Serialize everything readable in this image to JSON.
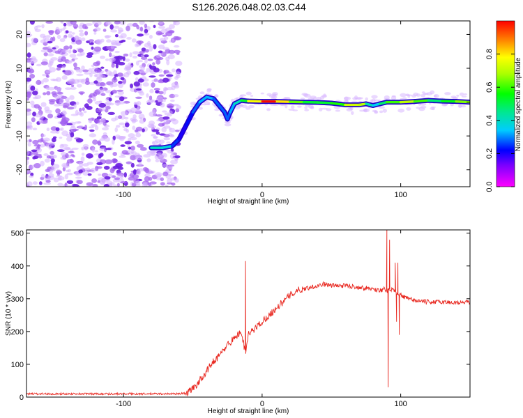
{
  "title": "S126.2026.048.02.03.C44",
  "chart_data": [
    {
      "type": "heatmap",
      "xlabel": "Height of straight line (km)",
      "ylabel": "Frequency (Hz)",
      "xlim": [
        -170,
        150
      ],
      "ylim": [
        -25,
        24
      ],
      "x_ticks": [
        -100,
        0,
        100
      ],
      "x_tick_labels": [
        "-100",
        "0",
        "100"
      ],
      "y_ticks": [
        -20,
        -10,
        0,
        10,
        20
      ],
      "y_tick_labels": [
        "-20",
        "-10",
        "0",
        "10",
        "20"
      ],
      "noise_region_x": [
        -170,
        -60
      ],
      "ridge": {
        "x": [
          -80,
          -72,
          -65,
          -60,
          -55,
          -50,
          -45,
          -40,
          -35,
          -30,
          -27,
          -25,
          -23,
          -20,
          -15,
          -10,
          0,
          10,
          20,
          30,
          40,
          50,
          60,
          70,
          75,
          80,
          85,
          90,
          100,
          110,
          120,
          130,
          140,
          150
        ],
        "y": [
          -13.5,
          -13.5,
          -13,
          -11,
          -7,
          -3,
          0,
          1.5,
          1,
          -1.5,
          -3,
          -5,
          -3,
          -0.5,
          0.5,
          0.3,
          0.2,
          0.2,
          0.1,
          0,
          -0.1,
          -0.3,
          -0.8,
          -0.8,
          -0.5,
          -1,
          -0.5,
          0,
          0,
          0.2,
          0.5,
          0.3,
          0.2,
          0
        ],
        "amplitude": [
          0.35,
          0.45,
          0.3,
          0.2,
          0.2,
          0.25,
          0.3,
          0.35,
          0.3,
          0.25,
          0.3,
          0.25,
          0.3,
          0.35,
          0.45,
          0.6,
          0.95,
          0.9,
          0.7,
          0.55,
          0.5,
          0.55,
          0.6,
          0.85,
          0.55,
          0.3,
          0.4,
          0.55,
          0.65,
          0.75,
          0.45,
          0.5,
          0.6,
          0.7
        ]
      },
      "colorbar": {
        "label": "Normalized spectral amplitude",
        "range": [
          0,
          1
        ],
        "ticks": [
          0.0,
          0.2,
          0.4,
          0.6,
          0.8
        ],
        "tick_labels": [
          "0.0",
          "0.2",
          "0.4",
          "0.6",
          "0.8"
        ]
      }
    },
    {
      "type": "line",
      "xlabel": "Height of straight line (km)",
      "ylabel": "SNR (10 * v/v)",
      "xlim": [
        -170,
        150
      ],
      "ylim": [
        0,
        510
      ],
      "x_ticks": [
        -100,
        0,
        100
      ],
      "x_tick_labels": [
        "-100",
        "0",
        "100"
      ],
      "y_ticks": [
        0,
        100,
        200,
        300,
        400,
        500
      ],
      "y_tick_labels": [
        "0",
        "100",
        "200",
        "300",
        "400",
        "500"
      ],
      "series": [
        {
          "name": "SNR",
          "color": "#e8251d",
          "x": [
            -170,
            -150,
            -130,
            -110,
            -90,
            -70,
            -60,
            -55,
            -50,
            -45,
            -40,
            -35,
            -30,
            -25,
            -20,
            -15,
            -12,
            -10,
            -5,
            0,
            5,
            10,
            15,
            20,
            25,
            30,
            35,
            40,
            45,
            50,
            60,
            70,
            80,
            85,
            88,
            90,
            92,
            95,
            98,
            100,
            105,
            110,
            120,
            130,
            140,
            150
          ],
          "y": [
            10,
            10,
            10,
            10,
            10,
            10,
            10,
            12,
            25,
            50,
            80,
            110,
            130,
            160,
            180,
            200,
            130,
            190,
            210,
            230,
            250,
            270,
            290,
            310,
            325,
            330,
            335,
            340,
            345,
            340,
            340,
            335,
            330,
            325,
            330,
            320,
            330,
            325,
            310,
            310,
            300,
            295,
            290,
            290,
            288,
            290
          ],
          "spikes": [
            {
              "x": -12,
              "y": 415
            },
            {
              "x": -13,
              "y": 145
            },
            {
              "x": 90,
              "y": 510
            },
            {
              "x": 91,
              "y": 30
            },
            {
              "x": 92,
              "y": 480
            },
            {
              "x": 96,
              "y": 410
            },
            {
              "x": 97,
              "y": 230
            },
            {
              "x": 98,
              "y": 410
            },
            {
              "x": 99,
              "y": 190
            }
          ]
        }
      ]
    }
  ]
}
